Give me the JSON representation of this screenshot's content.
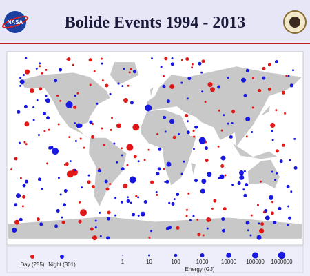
{
  "header": {
    "title": "Bolide Events 1994 - 2013",
    "logo_left": "NASA"
  },
  "legend": {
    "day": "Day (255)",
    "night": "Night (301)"
  },
  "energy_scale": {
    "labels": [
      "1",
      "10",
      "100",
      "1000",
      "10000",
      "100000",
      "1000000"
    ],
    "title": "Energy (GJ)"
  }
}
